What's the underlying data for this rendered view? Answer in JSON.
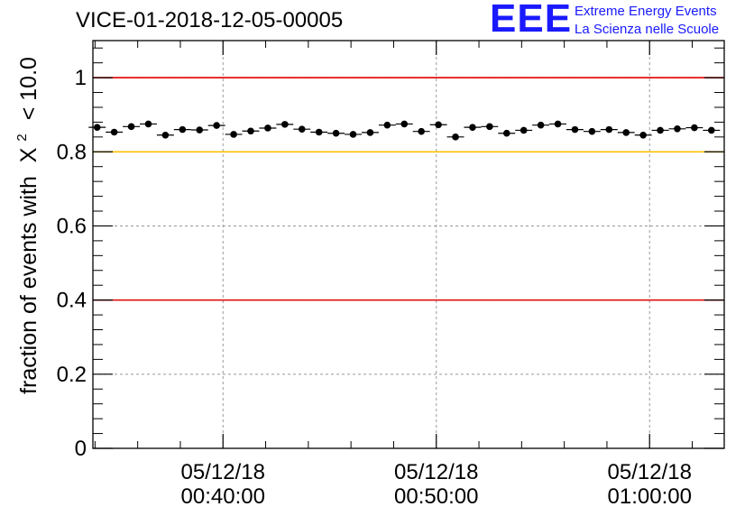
{
  "header": {
    "title": "VICE-01-2018-12-05-00005"
  },
  "logo": {
    "mark": "EEE",
    "line1": "Extreme Energy Events",
    "line2": "La Scienza nelle Scuole",
    "color": "#1a1aff"
  },
  "chart_data": {
    "type": "scatter",
    "title": "VICE-01-2018-12-05-00005",
    "xlabel": "",
    "ylabel": "fraction of events with",
    "ylabel_symbol": "Χ",
    "ylabel_superscript": "2",
    "ylabel_suffix": "< 10.0",
    "x_unit": "minutes",
    "xlim": [
      33.9,
      63.5
    ],
    "ylim": [
      0,
      1.1
    ],
    "y_ticks": [
      0,
      0.2,
      0.4,
      0.6,
      0.8,
      1
    ],
    "y_tick_labels": [
      "0",
      "0.2",
      "0.4",
      "0.6",
      "0.8",
      "1"
    ],
    "x_ticks": [
      {
        "x": 40,
        "date": "05/12/18",
        "time": "00:40:00"
      },
      {
        "x": 50,
        "date": "05/12/18",
        "time": "00:50:00"
      },
      {
        "x": 60,
        "date": "05/12/18",
        "time": "01:00:00"
      }
    ],
    "bin_width": 0.8,
    "x": [
      34.1,
      34.9,
      35.7,
      36.5,
      37.3,
      38.1,
      38.9,
      39.7,
      40.5,
      41.3,
      42.1,
      42.9,
      43.7,
      44.5,
      45.3,
      46.1,
      46.9,
      47.7,
      48.5,
      49.3,
      50.1,
      50.9,
      51.7,
      52.5,
      53.3,
      54.1,
      54.9,
      55.7,
      56.5,
      57.3,
      58.1,
      58.9,
      59.7,
      60.5,
      61.3,
      62.1,
      62.9
    ],
    "values": [
      0.866,
      0.853,
      0.868,
      0.875,
      0.845,
      0.86,
      0.859,
      0.871,
      0.847,
      0.856,
      0.864,
      0.874,
      0.861,
      0.853,
      0.85,
      0.847,
      0.852,
      0.872,
      0.875,
      0.855,
      0.873,
      0.84,
      0.866,
      0.868,
      0.85,
      0.858,
      0.872,
      0.875,
      0.86,
      0.855,
      0.86,
      0.852,
      0.845,
      0.858,
      0.862,
      0.865,
      0.858
    ],
    "reference_lines": [
      {
        "y": 1.0,
        "color": "#e00000"
      },
      {
        "y": 0.8,
        "color": "#ffc000"
      },
      {
        "y": 0.4,
        "color": "#e00000"
      }
    ],
    "grid": true,
    "marker_color": "#000000"
  }
}
